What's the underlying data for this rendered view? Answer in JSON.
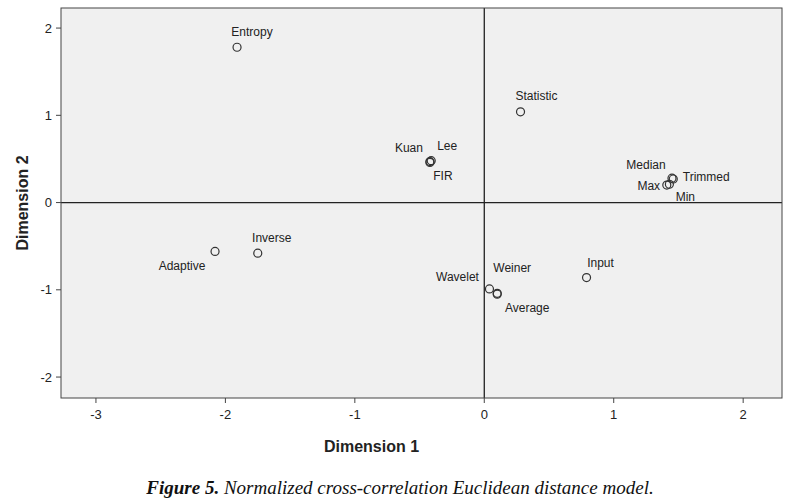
{
  "chart_data": {
    "type": "scatter",
    "caption": "Figure 5. Normalized cross-correlation Euclidean distance model.",
    "x_label": "Dimension 1",
    "y_label": "Dimension 2",
    "labels": [
      "Entropy",
      "Statistic",
      "Kuan",
      "Lee",
      "FIR",
      "Median",
      "Trimmed",
      "Max",
      "Min",
      "Adaptive",
      "Inverse",
      "Wavelet",
      "Weiner",
      "Average",
      "Input"
    ],
    "x": [
      -1.91,
      0.28,
      -0.42,
      -0.41,
      -0.42,
      1.45,
      1.46,
      1.41,
      1.43,
      -2.08,
      -1.75,
      0.04,
      0.1,
      0.1,
      0.79
    ],
    "values": [
      1.78,
      1.04,
      0.47,
      0.48,
      0.46,
      0.28,
      0.27,
      0.2,
      0.21,
      -0.56,
      -0.58,
      -0.99,
      -1.04,
      -1.05,
      -0.86
    ],
    "xlim": [
      -3.27,
      2.3
    ],
    "ylim": [
      -2.24,
      2.23
    ],
    "xticks": [
      -3,
      -2,
      -1,
      0,
      1,
      2
    ],
    "yticks": [
      -2,
      -1,
      0,
      1,
      2
    ],
    "grid": false,
    "marker": "circle",
    "color": "#333333"
  }
}
